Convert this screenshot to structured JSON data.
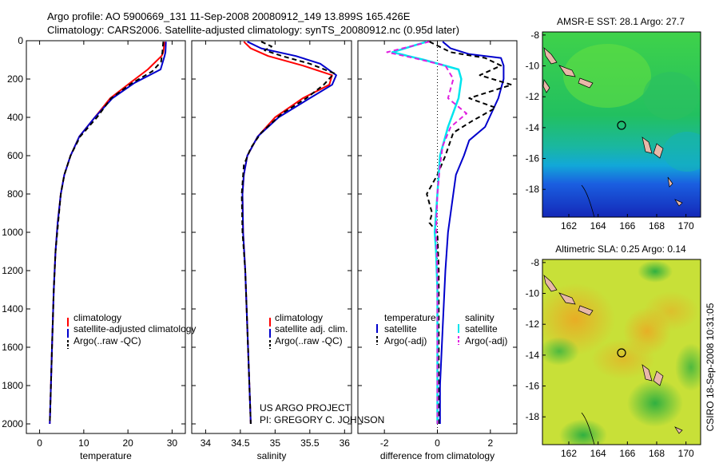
{
  "header": {
    "line1": "Argo profile: AO 5900669_131 11-Sep-2008 20080912_149 13.899S 165.426E",
    "line2": "Climatology: CARS2006. Satellite-adjusted climatology: synTS_20080912.nc (0.95d later)"
  },
  "side_label": "CSIRO 18-Sep-2008 10:31:05",
  "colors": {
    "climatology": "#ff0000",
    "satellite": "#0000cc",
    "argo": "#000000",
    "salinity_satellite": "#00e5ee",
    "salinity_argo": "#e020e0"
  },
  "chart_data": [
    {
      "id": "temperature",
      "type": "line",
      "xlabel": "temperature",
      "ylabel": "depth",
      "xlim": [
        -3,
        33
      ],
      "ylim": [
        2050,
        0
      ],
      "xticks": [
        0,
        10,
        20,
        30
      ],
      "yticks": [
        0,
        200,
        400,
        600,
        800,
        1000,
        1200,
        1400,
        1600,
        1800,
        2000
      ],
      "legend": [
        "climatology",
        "satellite-adjusted climatology",
        "Argo(..raw -QC)"
      ],
      "series": [
        {
          "name": "climatology",
          "color": "#ff0000",
          "dash": "",
          "points": [
            [
              28.3,
              5
            ],
            [
              28.0,
              60
            ],
            [
              27.6,
              80
            ],
            [
              24.5,
              150
            ],
            [
              20.5,
              220
            ],
            [
              16,
              300
            ],
            [
              12.5,
              400
            ],
            [
              9,
              500
            ],
            [
              7,
              600
            ],
            [
              5.6,
              700
            ],
            [
              4.8,
              800
            ],
            [
              4.1,
              950
            ],
            [
              3.6,
              1100
            ],
            [
              3.2,
              1300
            ],
            [
              2.8,
              1600
            ],
            [
              2.5,
              1850
            ],
            [
              2.3,
              2000
            ]
          ]
        },
        {
          "name": "satellite-adjusted climatology",
          "color": "#0000cc",
          "dash": "",
          "points": [
            [
              28.6,
              5
            ],
            [
              28.5,
              60
            ],
            [
              28.3,
              80
            ],
            [
              27.4,
              150
            ],
            [
              21.5,
              220
            ],
            [
              16.5,
              300
            ],
            [
              12.5,
              400
            ],
            [
              9,
              500
            ],
            [
              7,
              600
            ],
            [
              5.6,
              700
            ],
            [
              4.8,
              800
            ],
            [
              4.1,
              950
            ],
            [
              3.6,
              1100
            ],
            [
              3.2,
              1300
            ],
            [
              2.8,
              1600
            ],
            [
              2.5,
              1850
            ],
            [
              2.3,
              2000
            ]
          ]
        },
        {
          "name": "Argo(..raw -QC)",
          "color": "#000000",
          "dash": "6,4",
          "points": [
            [
              28.0,
              5
            ],
            [
              27.8,
              60
            ],
            [
              27.5,
              110
            ],
            [
              25.5,
              160
            ],
            [
              21,
              220
            ],
            [
              16.2,
              300
            ],
            [
              13,
              400
            ],
            [
              9.2,
              500
            ],
            [
              7,
              600
            ],
            [
              5.6,
              700
            ],
            [
              4.8,
              800
            ],
            [
              4.2,
              950
            ],
            [
              3.6,
              1100
            ],
            [
              3.2,
              1300
            ],
            [
              2.8,
              1600
            ],
            [
              2.5,
              1850
            ],
            [
              2.3,
              2000
            ]
          ]
        }
      ]
    },
    {
      "id": "salinity",
      "type": "line",
      "xlabel": "salinity",
      "xlim": [
        33.8,
        36.1
      ],
      "ylim": [
        2050,
        0
      ],
      "xticks": [
        34,
        34.5,
        35,
        35.5,
        36
      ],
      "legend": [
        "climatology",
        "satellite adj. clim.",
        "Argo(..raw -QC)"
      ],
      "series": [
        {
          "name": "climatology",
          "color": "#ff0000",
          "dash": "",
          "points": [
            [
              34.55,
              5
            ],
            [
              34.65,
              40
            ],
            [
              34.9,
              80
            ],
            [
              35.4,
              130
            ],
            [
              35.82,
              180
            ],
            [
              35.78,
              230
            ],
            [
              35.4,
              300
            ],
            [
              35.0,
              400
            ],
            [
              34.75,
              500
            ],
            [
              34.6,
              600
            ],
            [
              34.55,
              700
            ],
            [
              34.53,
              800
            ],
            [
              34.54,
              1000
            ],
            [
              34.57,
              1200
            ],
            [
              34.6,
              1500
            ],
            [
              34.63,
              1800
            ],
            [
              34.65,
              2000
            ]
          ]
        },
        {
          "name": "satellite adj. clim.",
          "color": "#0000cc",
          "dash": "",
          "points": [
            [
              34.6,
              5
            ],
            [
              34.8,
              40
            ],
            [
              35.3,
              80
            ],
            [
              35.65,
              120
            ],
            [
              35.88,
              180
            ],
            [
              35.82,
              230
            ],
            [
              35.5,
              300
            ],
            [
              35.05,
              400
            ],
            [
              34.75,
              500
            ],
            [
              34.6,
              600
            ],
            [
              34.55,
              700
            ],
            [
              34.53,
              800
            ],
            [
              34.54,
              1000
            ],
            [
              34.57,
              1200
            ],
            [
              34.6,
              1500
            ],
            [
              34.63,
              1800
            ],
            [
              34.65,
              2000
            ]
          ]
        },
        {
          "name": "Argo(..raw -QC)",
          "color": "#000000",
          "dash": "6,4",
          "points": [
            [
              34.8,
              5
            ],
            [
              34.95,
              30
            ],
            [
              34.85,
              50
            ],
            [
              35.1,
              80
            ],
            [
              35.5,
              120
            ],
            [
              35.85,
              170
            ],
            [
              35.7,
              230
            ],
            [
              35.45,
              300
            ],
            [
              35.1,
              380
            ],
            [
              34.8,
              480
            ],
            [
              34.65,
              560
            ],
            [
              34.55,
              650
            ],
            [
              34.52,
              800
            ],
            [
              34.53,
              1000
            ],
            [
              34.57,
              1200
            ],
            [
              34.6,
              1500
            ],
            [
              34.63,
              1800
            ],
            [
              34.65,
              2000
            ]
          ]
        }
      ]
    },
    {
      "id": "difference",
      "type": "line",
      "xlabel": "difference from climatology",
      "xlim": [
        -3,
        3
      ],
      "ylim": [
        2050,
        0
      ],
      "xticks": [
        -2,
        0,
        2
      ],
      "legend_groups": [
        {
          "title": "temperature",
          "entries": [
            "satellite",
            "Argo(-adj)"
          ]
        },
        {
          "title": "salinity",
          "entries": [
            "satellite",
            "Argo(-adj)"
          ]
        }
      ],
      "series": [
        {
          "name": "temperature satellite",
          "color": "#0000cc",
          "dash": "",
          "points": [
            [
              0.2,
              5
            ],
            [
              0.5,
              40
            ],
            [
              1.2,
              70
            ],
            [
              2.4,
              90
            ],
            [
              2.5,
              130
            ],
            [
              2.5,
              200
            ],
            [
              2.3,
              300
            ],
            [
              1.8,
              450
            ],
            [
              1.2,
              520
            ],
            [
              1.0,
              600
            ],
            [
              0.7,
              700
            ],
            [
              0.6,
              800
            ],
            [
              0.4,
              1000
            ],
            [
              0.3,
              1200
            ],
            [
              0.2,
              1500
            ],
            [
              0.1,
              1800
            ],
            [
              0.1,
              2000
            ]
          ]
        },
        {
          "name": "temperature Argo(-adj)",
          "color": "#000000",
          "dash": "6,4",
          "points": [
            [
              -0.3,
              5
            ],
            [
              0.5,
              60
            ],
            [
              1.8,
              90
            ],
            [
              2.4,
              130
            ],
            [
              1.6,
              180
            ],
            [
              2.8,
              230
            ],
            [
              1.2,
              300
            ],
            [
              2.2,
              350
            ],
            [
              1.3,
              420
            ],
            [
              0.6,
              480
            ],
            [
              0.3,
              600
            ],
            [
              0.0,
              700
            ],
            [
              -0.4,
              800
            ],
            [
              -0.2,
              900
            ],
            [
              -0.3,
              950
            ],
            [
              0.0,
              1000
            ],
            [
              0.05,
              1200
            ],
            [
              0.05,
              1500
            ],
            [
              0.05,
              2000
            ]
          ]
        },
        {
          "name": "salinity satellite",
          "color": "#00e5ee",
          "dash": "",
          "points": [
            [
              -0.4,
              5
            ],
            [
              -1.7,
              60
            ],
            [
              -0.5,
              100
            ],
            [
              0.8,
              150
            ],
            [
              0.9,
              200
            ],
            [
              0.8,
              300
            ],
            [
              0.4,
              450
            ],
            [
              0.1,
              600
            ],
            [
              0.0,
              800
            ],
            [
              -0.1,
              1000
            ],
            [
              -0.05,
              1100
            ],
            [
              0.0,
              1300
            ],
            [
              0.0,
              1500
            ],
            [
              0.0,
              2000
            ]
          ]
        },
        {
          "name": "salinity Argo(-adj)",
          "color": "#e020e0",
          "dash": "6,4",
          "points": [
            [
              -0.3,
              5
            ],
            [
              -1.9,
              60
            ],
            [
              -0.9,
              90
            ],
            [
              0.3,
              130
            ],
            [
              0.6,
              200
            ],
            [
              0.4,
              300
            ],
            [
              1.1,
              380
            ],
            [
              0.5,
              450
            ],
            [
              0.2,
              550
            ],
            [
              0.1,
              650
            ],
            [
              0.0,
              800
            ],
            [
              -0.05,
              1000
            ],
            [
              0.0,
              1200
            ],
            [
              0.0,
              1500
            ],
            [
              0.0,
              2000
            ]
          ]
        }
      ]
    }
  ],
  "maps": [
    {
      "id": "sst",
      "title": "AMSR-E SST: 28.1 Argo: 27.7",
      "xlim": [
        160.2,
        171
      ],
      "ylim": [
        -19.8,
        -7.8
      ],
      "xticks": [
        162,
        164,
        166,
        168,
        170
      ],
      "yticks": [
        -8,
        -10,
        -12,
        -14,
        -16,
        -18
      ],
      "marker": [
        165.426,
        -13.899
      ]
    },
    {
      "id": "sla",
      "title": "Altimetric SLA: 0.25 Argo: 0.14",
      "xlim": [
        160.2,
        171
      ],
      "ylim": [
        -19.8,
        -7.8
      ],
      "xticks": [
        162,
        164,
        166,
        168,
        170
      ],
      "yticks": [
        -8,
        -10,
        -12,
        -14,
        -16,
        -18
      ],
      "marker": [
        165.426,
        -13.899
      ]
    }
  ],
  "annotation": {
    "line1": "US ARGO PROJECT",
    "line2": "PI: GREGORY C. JOHNSON"
  }
}
